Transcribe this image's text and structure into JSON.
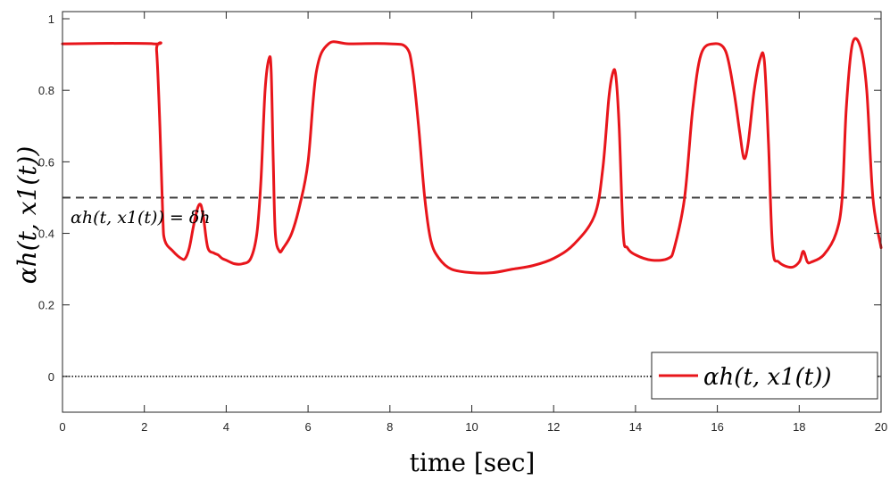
{
  "chart_data": {
    "type": "line",
    "xlabel": "time [sec]",
    "ylabel": "αh(t, x1(t))",
    "xlim": [
      0,
      20
    ],
    "ylim": [
      -0.1,
      1.02
    ],
    "xticks": [
      0,
      2,
      4,
      6,
      8,
      10,
      12,
      14,
      16,
      18,
      20
    ],
    "yticks": [
      0,
      0.2,
      0.4,
      0.6,
      0.8,
      1
    ],
    "ytick_labels": [
      "0",
      "0.2",
      "0.4",
      "0.6",
      "0.8",
      "1"
    ],
    "grid": false,
    "legend_position": "bottom-right",
    "colors": {
      "series": "#e8151b",
      "threshold": "#404040",
      "zero": "#000000",
      "axes": "#262626"
    },
    "series": [
      {
        "name": "αh(t, x1(t))",
        "x": [
          0,
          2.22,
          2.3,
          2.38,
          2.45,
          2.5,
          2.7,
          2.9,
          3.0,
          3.1,
          3.2,
          3.3,
          3.38,
          3.45,
          3.55,
          3.7,
          3.8,
          3.9,
          4.0,
          4.2,
          4.4,
          4.6,
          4.75,
          4.85,
          4.95,
          5.05,
          5.1,
          5.15,
          5.2,
          5.3,
          5.4,
          5.6,
          5.8,
          6.0,
          6.2,
          6.5,
          7.0,
          8.0,
          8.4,
          8.55,
          8.7,
          8.85,
          9.0,
          9.2,
          9.5,
          10.0,
          10.5,
          11.0,
          11.5,
          12.0,
          12.5,
          13.0,
          13.2,
          13.35,
          13.45,
          13.52,
          13.6,
          13.7,
          13.8,
          14.0,
          14.4,
          14.8,
          14.95,
          15.2,
          15.4,
          15.6,
          15.9,
          16.2,
          16.4,
          16.55,
          16.65,
          16.75,
          16.9,
          17.05,
          17.15,
          17.25,
          17.35,
          17.5,
          17.8,
          18.0,
          18.1,
          18.2,
          18.3,
          18.6,
          18.9,
          19.05,
          19.15,
          19.3,
          19.5,
          19.65,
          19.8,
          20.0
        ],
        "y": [
          0.93,
          0.93,
          0.91,
          0.7,
          0.45,
          0.38,
          0.35,
          0.33,
          0.33,
          0.36,
          0.42,
          0.47,
          0.48,
          0.44,
          0.36,
          0.345,
          0.34,
          0.33,
          0.325,
          0.315,
          0.315,
          0.33,
          0.4,
          0.55,
          0.8,
          0.89,
          0.85,
          0.6,
          0.4,
          0.35,
          0.36,
          0.4,
          0.48,
          0.6,
          0.85,
          0.93,
          0.93,
          0.93,
          0.92,
          0.86,
          0.7,
          0.5,
          0.38,
          0.33,
          0.3,
          0.29,
          0.29,
          0.3,
          0.31,
          0.33,
          0.37,
          0.45,
          0.58,
          0.78,
          0.85,
          0.84,
          0.7,
          0.4,
          0.36,
          0.34,
          0.325,
          0.33,
          0.36,
          0.5,
          0.75,
          0.9,
          0.93,
          0.91,
          0.8,
          0.68,
          0.61,
          0.65,
          0.8,
          0.89,
          0.88,
          0.65,
          0.36,
          0.32,
          0.305,
          0.32,
          0.35,
          0.32,
          0.32,
          0.34,
          0.4,
          0.5,
          0.75,
          0.93,
          0.92,
          0.8,
          0.5,
          0.36
        ]
      }
    ],
    "reference_lines": [
      {
        "y": 0.5,
        "style": "dashed"
      },
      {
        "y": 0,
        "style": "dotted"
      }
    ],
    "annotations": [
      {
        "text": "αh(t, x1(t)) = δh",
        "x": 0.15,
        "y": 0.44
      }
    ]
  }
}
